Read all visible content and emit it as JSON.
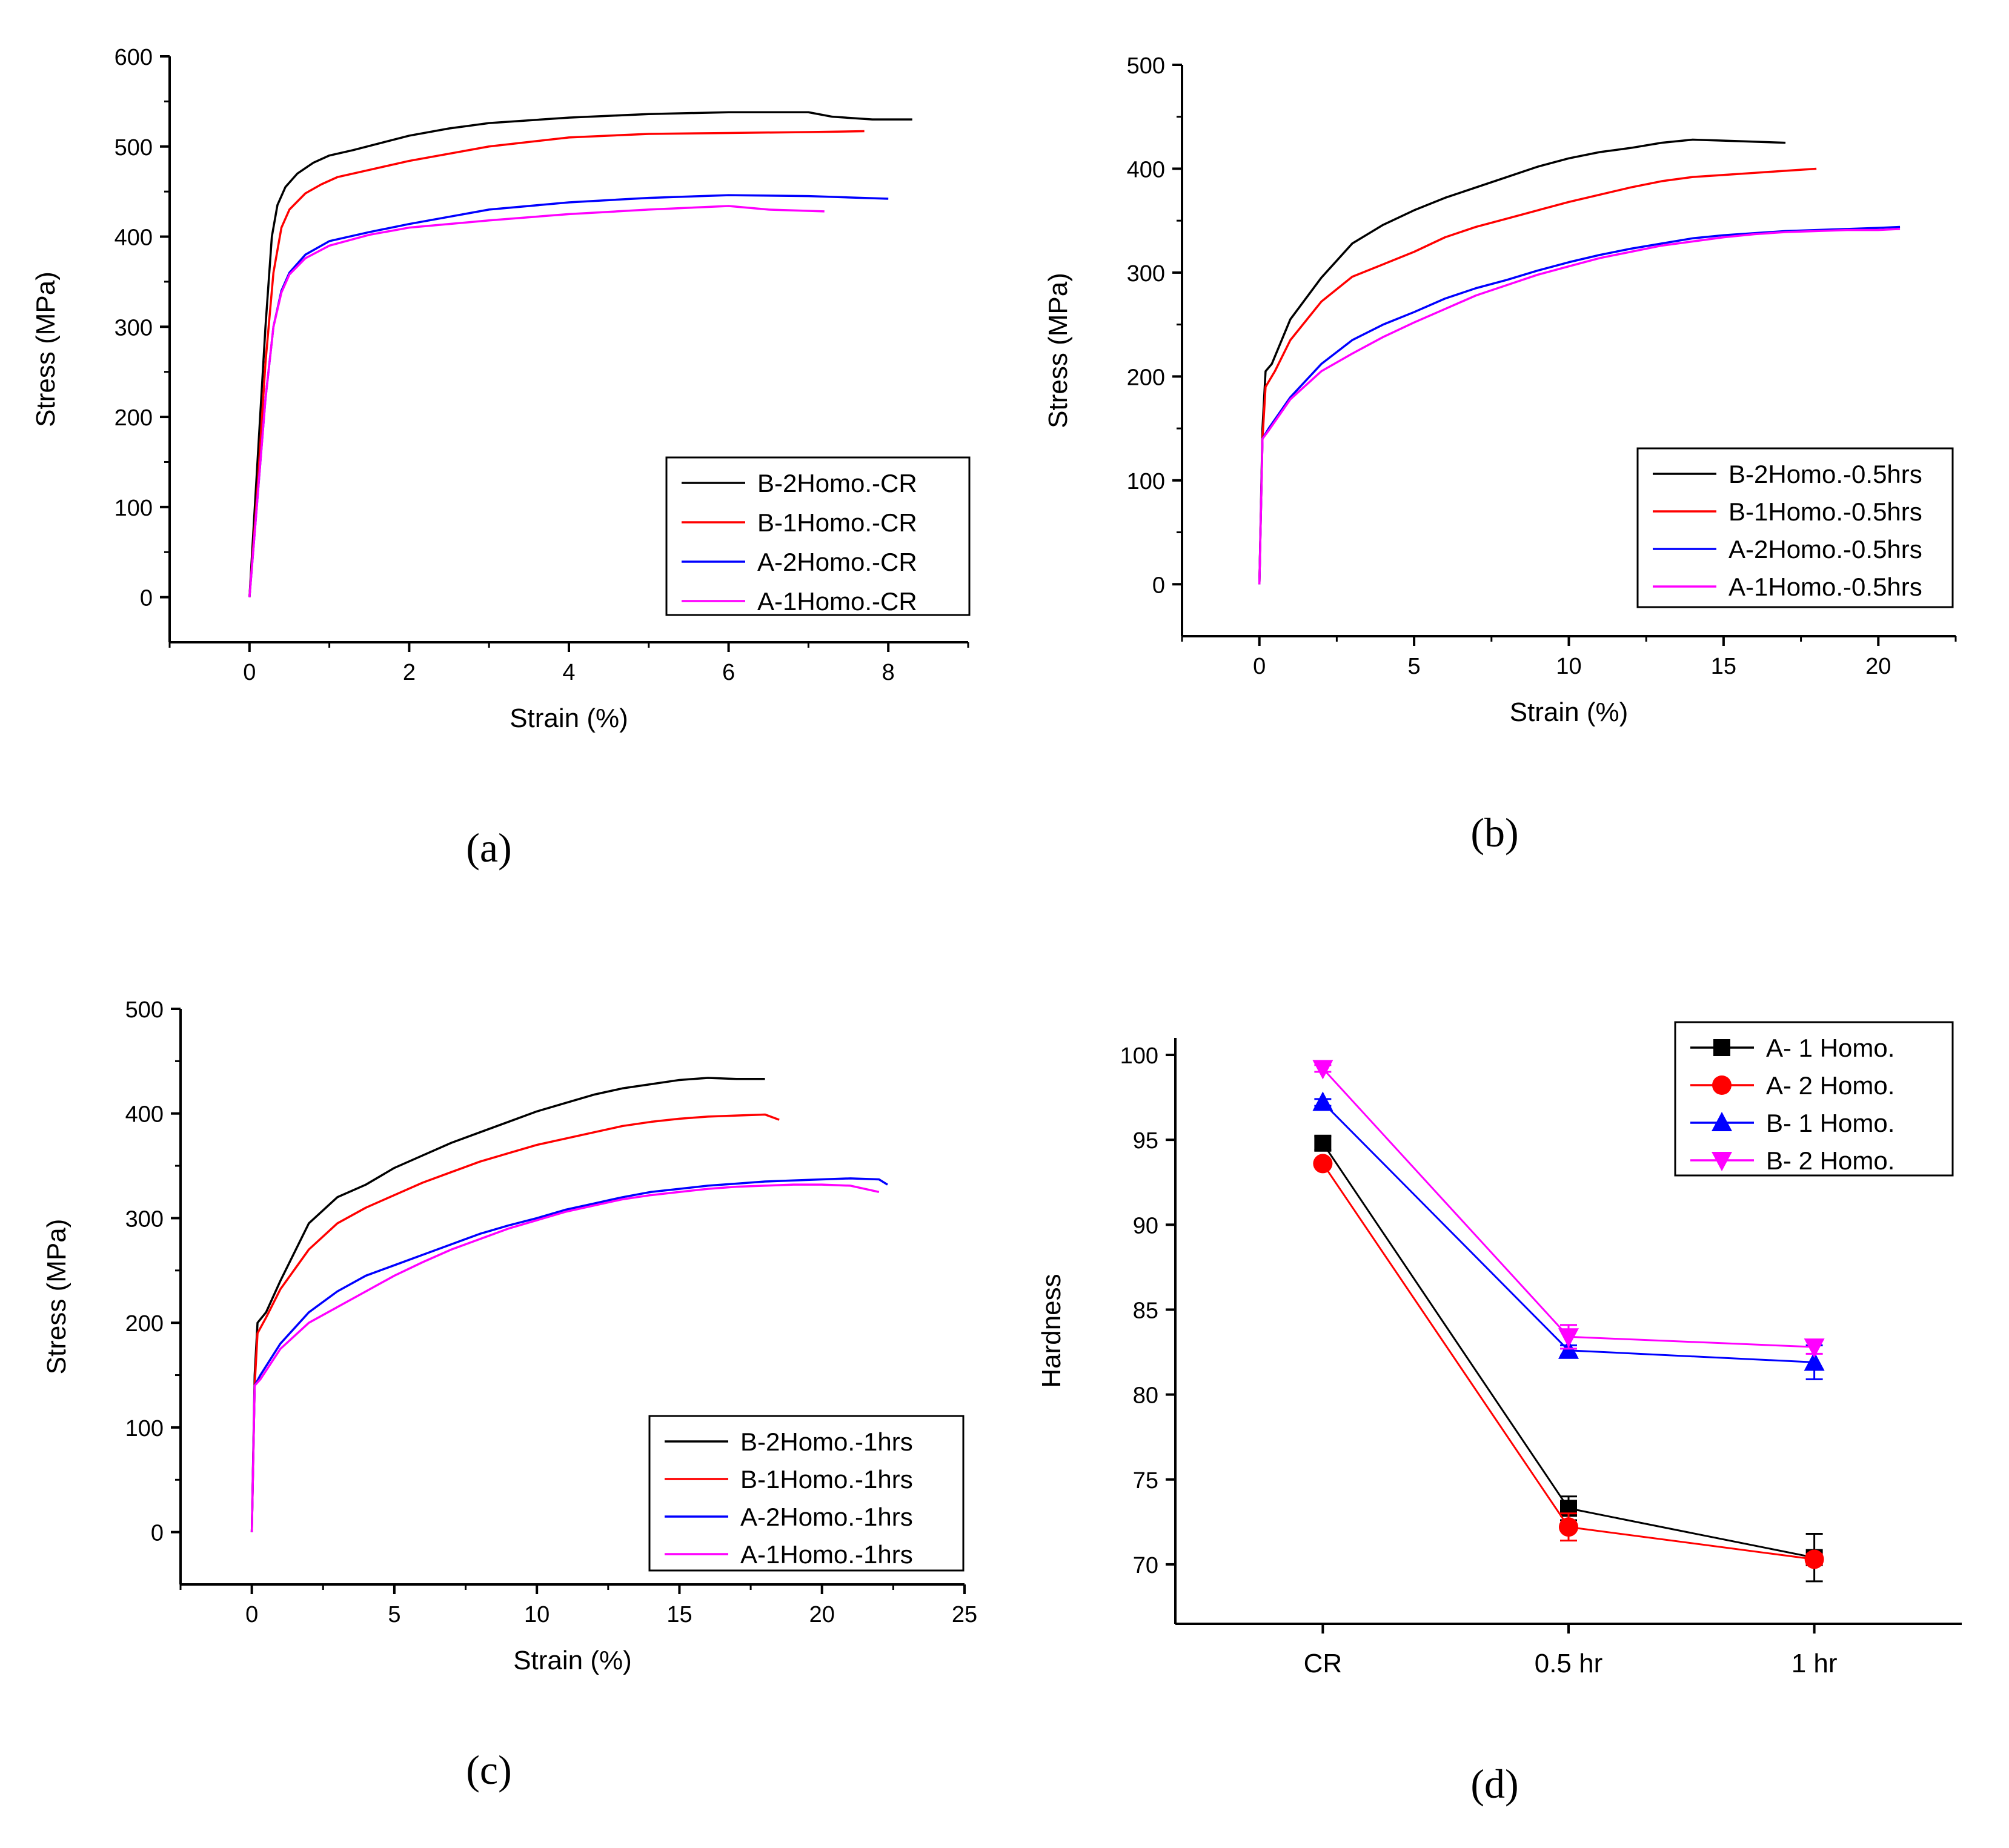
{
  "captions": [
    "(a)",
    "(b)",
    "(c)",
    "(d)"
  ],
  "chart_data": [
    {
      "type": "line",
      "panel": "a",
      "xlabel": "Strain (%)",
      "ylabel": "Stress (MPa)",
      "xlim": [
        -1,
        9
      ],
      "ylim": [
        -50,
        600
      ],
      "xticks": [
        0,
        2,
        4,
        6,
        8
      ],
      "yticks": [
        0,
        100,
        200,
        300,
        400,
        500,
        600
      ],
      "legend": "bottom-right",
      "series": [
        {
          "name": "B-2Homo.-CR",
          "color": "#000000",
          "x": [
            0,
            0.1,
            0.2,
            0.28,
            0.35,
            0.45,
            0.6,
            0.8,
            1.0,
            1.3,
            2.0,
            2.5,
            3.0,
            4.0,
            5.0,
            6.0,
            7.0,
            7.3,
            7.8,
            8.3
          ],
          "y": [
            0,
            150,
            300,
            400,
            435,
            455,
            470,
            482,
            490,
            496,
            512,
            520,
            526,
            532,
            536,
            538,
            538,
            533,
            530,
            530
          ]
        },
        {
          "name": "B-1Homo.-CR",
          "color": "#ff0000",
          "x": [
            0,
            0.1,
            0.2,
            0.3,
            0.4,
            0.5,
            0.7,
            0.9,
            1.1,
            1.5,
            2.0,
            3.0,
            4.0,
            5.0,
            6.0,
            7.0,
            7.7
          ],
          "y": [
            0,
            120,
            260,
            360,
            410,
            430,
            448,
            458,
            466,
            474,
            484,
            500,
            510,
            514,
            515,
            516,
            517
          ]
        },
        {
          "name": "A-2Homo.-CR",
          "color": "#0000ff",
          "x": [
            0,
            0.1,
            0.2,
            0.3,
            0.4,
            0.5,
            0.7,
            1.0,
            1.5,
            2.0,
            3.0,
            4.0,
            5.0,
            6.0,
            7.0,
            8.0
          ],
          "y": [
            0,
            110,
            220,
            300,
            340,
            360,
            380,
            395,
            405,
            414,
            430,
            438,
            443,
            446,
            445,
            442
          ]
        },
        {
          "name": "A-1Homo.-CR",
          "color": "#ff00ff",
          "x": [
            0,
            0.1,
            0.2,
            0.3,
            0.4,
            0.5,
            0.7,
            1.0,
            1.5,
            2.0,
            3.0,
            4.0,
            5.0,
            6.0,
            6.5,
            7.2
          ],
          "y": [
            0,
            110,
            220,
            300,
            338,
            358,
            376,
            390,
            402,
            410,
            418,
            425,
            430,
            434,
            430,
            428
          ]
        }
      ]
    },
    {
      "type": "line",
      "panel": "b",
      "xlabel": "Strain (%)",
      "ylabel": "Stress (MPa)",
      "xlim": [
        -2.5,
        22.5
      ],
      "ylim": [
        -50,
        500
      ],
      "xticks": [
        0,
        5,
        10,
        15,
        20
      ],
      "yticks": [
        0,
        100,
        200,
        300,
        400,
        500
      ],
      "legend": "bottom-right",
      "series": [
        {
          "name": "B-2Homo.-0.5hrs",
          "color": "#000000",
          "x": [
            0,
            0.1,
            0.2,
            0.4,
            1.0,
            2.0,
            3.0,
            4.0,
            5.0,
            6.0,
            7.0,
            8.0,
            9.0,
            10.0,
            11.0,
            12.0,
            13.0,
            14.0,
            15.0,
            16.0,
            17.0
          ],
          "y": [
            0,
            150,
            205,
            212,
            255,
            295,
            328,
            346,
            360,
            372,
            382,
            392,
            402,
            410,
            416,
            420,
            425,
            428,
            427,
            426,
            425
          ]
        },
        {
          "name": "B-1Homo.-0.5hrs",
          "color": "#ff0000",
          "x": [
            0,
            0.1,
            0.2,
            0.5,
            1.0,
            2.0,
            3.0,
            4.0,
            5.0,
            6.0,
            7.0,
            8.0,
            9.0,
            10.0,
            11.0,
            12.0,
            13.0,
            14.0,
            15.0,
            16.0,
            17.0,
            18.0
          ],
          "y": [
            0,
            140,
            190,
            205,
            235,
            272,
            296,
            308,
            320,
            334,
            344,
            352,
            360,
            368,
            375,
            382,
            388,
            392,
            394,
            396,
            398,
            400
          ]
        },
        {
          "name": "A-2Homo.-0.5hrs",
          "color": "#0000ff",
          "x": [
            0,
            0.1,
            0.3,
            1.0,
            2.0,
            3.0,
            4.0,
            5.0,
            6.0,
            7.0,
            8.0,
            9.0,
            10.0,
            11.0,
            12.0,
            13.0,
            14.0,
            15.0,
            16.0,
            17.0,
            18.0,
            19.0,
            20.0,
            20.7
          ],
          "y": [
            0,
            140,
            150,
            180,
            212,
            235,
            250,
            262,
            275,
            285,
            293,
            302,
            310,
            317,
            323,
            328,
            333,
            336,
            338,
            340,
            341,
            342,
            343,
            344
          ]
        },
        {
          "name": "A-1Homo.-0.5hrs",
          "color": "#ff00ff",
          "x": [
            0,
            0.1,
            0.3,
            1.0,
            2.0,
            3.0,
            4.0,
            5.0,
            6.0,
            7.0,
            8.0,
            9.0,
            10.0,
            11.0,
            12.0,
            13.0,
            14.0,
            15.0,
            16.0,
            17.0,
            18.0,
            19.0,
            20.0,
            20.7
          ],
          "y": [
            0,
            140,
            148,
            178,
            205,
            222,
            238,
            252,
            265,
            278,
            288,
            298,
            306,
            314,
            320,
            326,
            330,
            334,
            337,
            339,
            340,
            341,
            341,
            342
          ]
        }
      ]
    },
    {
      "type": "line",
      "panel": "c",
      "xlabel": "Strain (%)",
      "ylabel": "Stress (MPa)",
      "xlim": [
        -2.5,
        25
      ],
      "ylim": [
        -50,
        500
      ],
      "xticks": [
        0,
        5,
        10,
        15,
        20,
        25
      ],
      "yticks": [
        0,
        100,
        200,
        300,
        400,
        500
      ],
      "legend": "bottom-right",
      "series": [
        {
          "name": "B-2Homo.-1hrs",
          "color": "#000000",
          "x": [
            0,
            0.1,
            0.2,
            0.5,
            1.0,
            2.0,
            3.0,
            4.0,
            5.0,
            6.0,
            7.0,
            8.0,
            9.0,
            10.0,
            11.0,
            12.0,
            13.0,
            14.0,
            15.0,
            16.0,
            17.0,
            18.0
          ],
          "y": [
            0,
            150,
            200,
            210,
            240,
            295,
            320,
            332,
            348,
            360,
            372,
            382,
            392,
            402,
            410,
            418,
            424,
            428,
            432,
            434,
            433,
            433
          ]
        },
        {
          "name": "B-1Homo.-1hrs",
          "color": "#ff0000",
          "x": [
            0,
            0.1,
            0.2,
            0.5,
            1.0,
            2.0,
            3.0,
            4.0,
            5.0,
            6.0,
            7.0,
            8.0,
            9.0,
            10.0,
            11.0,
            12.0,
            13.0,
            14.0,
            15.0,
            16.0,
            17.0,
            18.0,
            18.5
          ],
          "y": [
            0,
            140,
            190,
            205,
            232,
            270,
            295,
            310,
            322,
            334,
            344,
            354,
            362,
            370,
            376,
            382,
            388,
            392,
            395,
            397,
            398,
            399,
            394
          ]
        },
        {
          "name": "A-2Homo.-1hrs",
          "color": "#0000ff",
          "x": [
            0,
            0.1,
            0.3,
            1.0,
            2.0,
            3.0,
            4.0,
            5.0,
            6.0,
            7.0,
            8.0,
            9.0,
            10.0,
            11.0,
            12.0,
            13.0,
            14.0,
            15.0,
            16.0,
            17.0,
            18.0,
            19.0,
            20.0,
            21.0,
            22.0,
            22.3
          ],
          "y": [
            0,
            140,
            150,
            180,
            210,
            230,
            245,
            255,
            265,
            275,
            285,
            293,
            300,
            308,
            314,
            320,
            325,
            328,
            331,
            333,
            335,
            336,
            337,
            338,
            337,
            332
          ]
        },
        {
          "name": "A-1Homo.-1hrs",
          "color": "#ff00ff",
          "x": [
            0,
            0.1,
            0.3,
            1.0,
            2.0,
            3.0,
            4.0,
            5.0,
            6.0,
            7.0,
            8.0,
            9.0,
            10.0,
            11.0,
            12.0,
            13.0,
            14.0,
            15.0,
            16.0,
            17.0,
            18.0,
            19.0,
            20.0,
            21.0,
            22.0
          ],
          "y": [
            0,
            140,
            146,
            175,
            200,
            215,
            230,
            245,
            258,
            270,
            280,
            290,
            298,
            306,
            312,
            318,
            322,
            325,
            328,
            330,
            331,
            332,
            332,
            331,
            325
          ]
        }
      ]
    },
    {
      "type": "line",
      "panel": "d",
      "xlabel": "",
      "ylabel": "Hardness",
      "categories": [
        "CR",
        "0.5 hr",
        "1 hr"
      ],
      "ylim": [
        66.5,
        101
      ],
      "yticks": [
        70,
        75,
        80,
        85,
        90,
        95,
        100
      ],
      "legend": "top-right",
      "series": [
        {
          "name": "A- 1 Homo.",
          "color": "#000000",
          "marker": "square",
          "values": [
            94.8,
            73.3,
            70.4
          ],
          "errors": [
            0.4,
            0.7,
            1.4
          ]
        },
        {
          "name": "A- 2 Homo.",
          "color": "#ff0000",
          "marker": "circle",
          "values": [
            93.6,
            72.2,
            70.3
          ],
          "errors": [
            0.2,
            0.8,
            0.3
          ]
        },
        {
          "name": "B- 1 Homo.",
          "color": "#0000ff",
          "marker": "triangle-up",
          "values": [
            97.2,
            82.6,
            81.9
          ],
          "errors": [
            0.2,
            0.3,
            1.0
          ]
        },
        {
          "name": "B- 2 Homo.",
          "color": "#ff00ff",
          "marker": "triangle-down",
          "values": [
            99.2,
            83.4,
            82.8
          ],
          "errors": [
            0.2,
            0.7,
            0.4
          ]
        }
      ]
    }
  ]
}
